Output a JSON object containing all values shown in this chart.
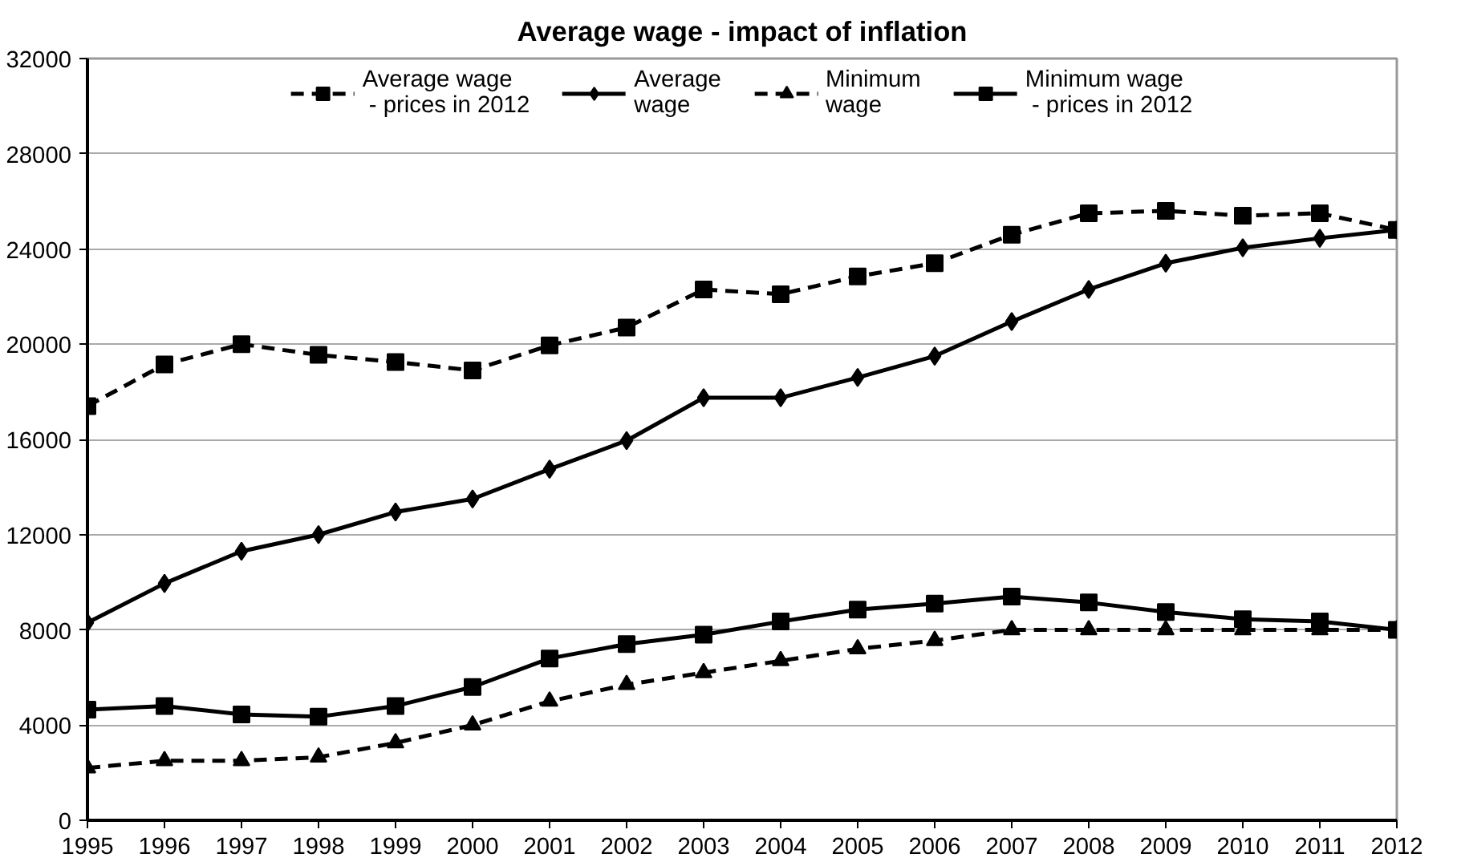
{
  "chart_data": {
    "type": "line",
    "title": "Average wage - impact of inflation",
    "x": [
      1995,
      1996,
      1997,
      1998,
      1999,
      2000,
      2001,
      2002,
      2003,
      2004,
      2005,
      2006,
      2007,
      2008,
      2009,
      2010,
      2011,
      2012
    ],
    "xlim": [
      1995,
      2012
    ],
    "xticks": [
      1995,
      1996,
      1997,
      1998,
      1999,
      2000,
      2001,
      2002,
      2003,
      2004,
      2005,
      2006,
      2007,
      2008,
      2009,
      2010,
      2011,
      2012
    ],
    "ylim": [
      0,
      32000
    ],
    "yticks": [
      0,
      4000,
      8000,
      12000,
      16000,
      20000,
      24000,
      28000,
      32000
    ],
    "grid": "y",
    "legend": "top",
    "series": [
      {
        "name": "Average wage\n - prices in 2012",
        "color": "#000000",
        "marker": "square",
        "line_style": "dashed",
        "values": [
          17400,
          19150,
          20000,
          19550,
          19250,
          18900,
          19950,
          20700,
          22300,
          22100,
          22850,
          23400,
          24600,
          25500,
          25600,
          25400,
          25500,
          24800
        ]
      },
      {
        "name": "Average\nwage",
        "color": "#000000",
        "marker": "diamond",
        "line_style": "solid",
        "values": [
          8300,
          9950,
          11300,
          12000,
          12950,
          13500,
          14750,
          15950,
          17750,
          17750,
          18600,
          19500,
          20950,
          22300,
          23400,
          24050,
          24450,
          24800
        ]
      },
      {
        "name": "Minimum\nwage",
        "color": "#000000",
        "marker": "triangle",
        "line_style": "dashed",
        "values": [
          2200,
          2500,
          2500,
          2650,
          3250,
          4000,
          5000,
          5700,
          6200,
          6700,
          7200,
          7550,
          8000,
          8000,
          8000,
          8000,
          8000,
          8000
        ]
      },
      {
        "name": "Minimum wage\n - prices in 2012",
        "color": "#000000",
        "marker": "square",
        "line_style": "solid",
        "values": [
          4650,
          4800,
          4450,
          4350,
          4800,
          5600,
          6800,
          7400,
          7800,
          8350,
          8850,
          9100,
          9400,
          9150,
          8750,
          8450,
          8350,
          8000
        ]
      }
    ]
  }
}
